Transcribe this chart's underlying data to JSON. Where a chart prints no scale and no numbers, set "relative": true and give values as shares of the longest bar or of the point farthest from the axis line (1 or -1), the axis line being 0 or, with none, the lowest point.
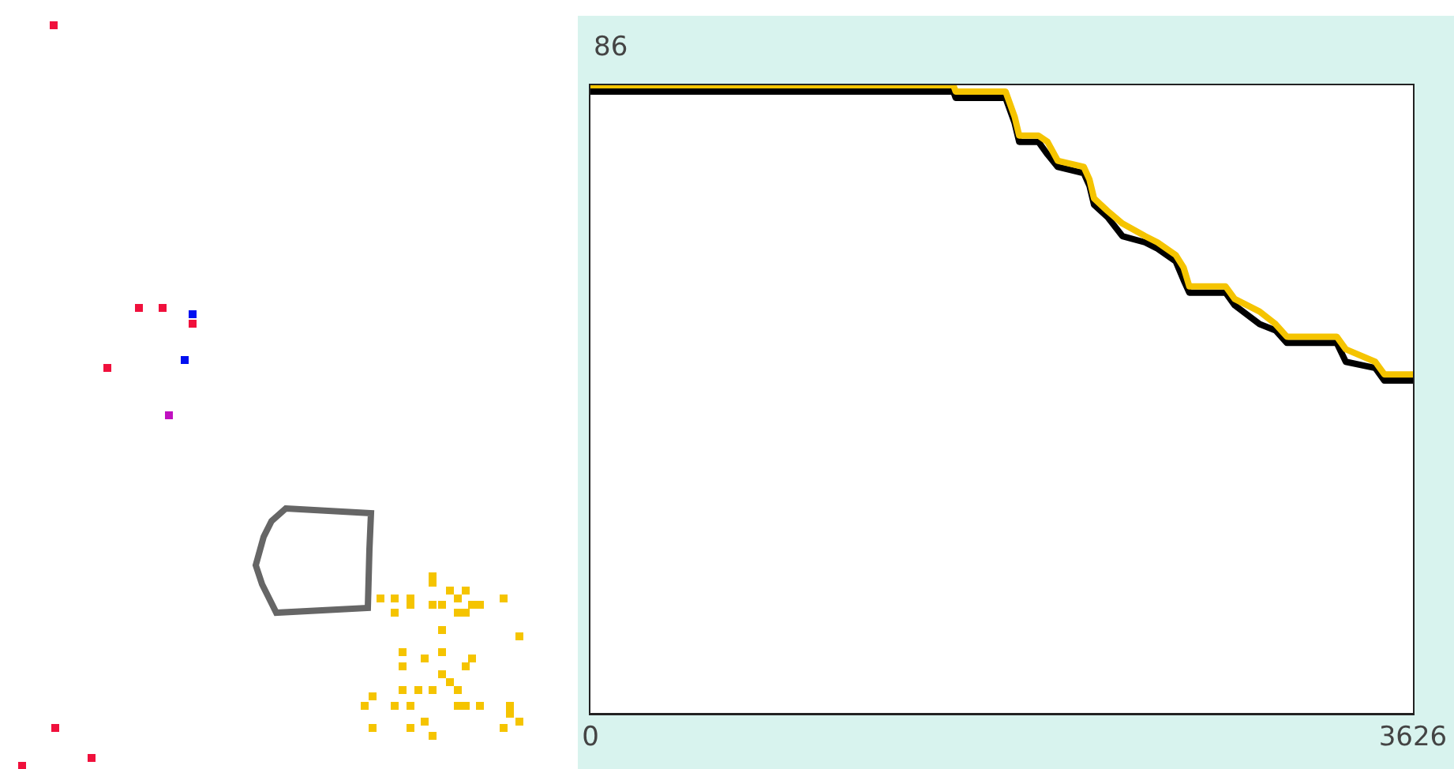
{
  "chart_data": {
    "type": "line",
    "relative": true,
    "x": [
      0,
      1600,
      1610,
      1830,
      1870,
      1890,
      1975,
      2015,
      2060,
      2175,
      2200,
      2220,
      2280,
      2345,
      2445,
      2500,
      2580,
      2615,
      2640,
      2800,
      2840,
      2950,
      3020,
      3070,
      3290,
      3330,
      3460,
      3500,
      3626
    ],
    "series": [
      {
        "color": "#000000",
        "values": [
          0.99,
          0.99,
          0.98,
          0.98,
          0.94,
          0.91,
          0.91,
          0.89,
          0.87,
          0.86,
          0.84,
          0.81,
          0.79,
          0.76,
          0.75,
          0.74,
          0.72,
          0.69,
          0.67,
          0.67,
          0.65,
          0.62,
          0.61,
          0.59,
          0.59,
          0.56,
          0.55,
          0.53,
          0.53
        ]
      },
      {
        "color": "#f5c400",
        "values": [
          1,
          1,
          0.99,
          0.99,
          0.95,
          0.92,
          0.92,
          0.91,
          0.88,
          0.87,
          0.85,
          0.82,
          0.8,
          0.78,
          0.76,
          0.75,
          0.73,
          0.71,
          0.68,
          0.68,
          0.66,
          0.64,
          0.62,
          0.6,
          0.6,
          0.58,
          0.56,
          0.54,
          0.54
        ]
      }
    ],
    "xlim": [
      0,
      3626
    ],
    "xticks": [
      0,
      3626
    ],
    "annotations": [
      "86"
    ],
    "marker": "none"
  }
}
